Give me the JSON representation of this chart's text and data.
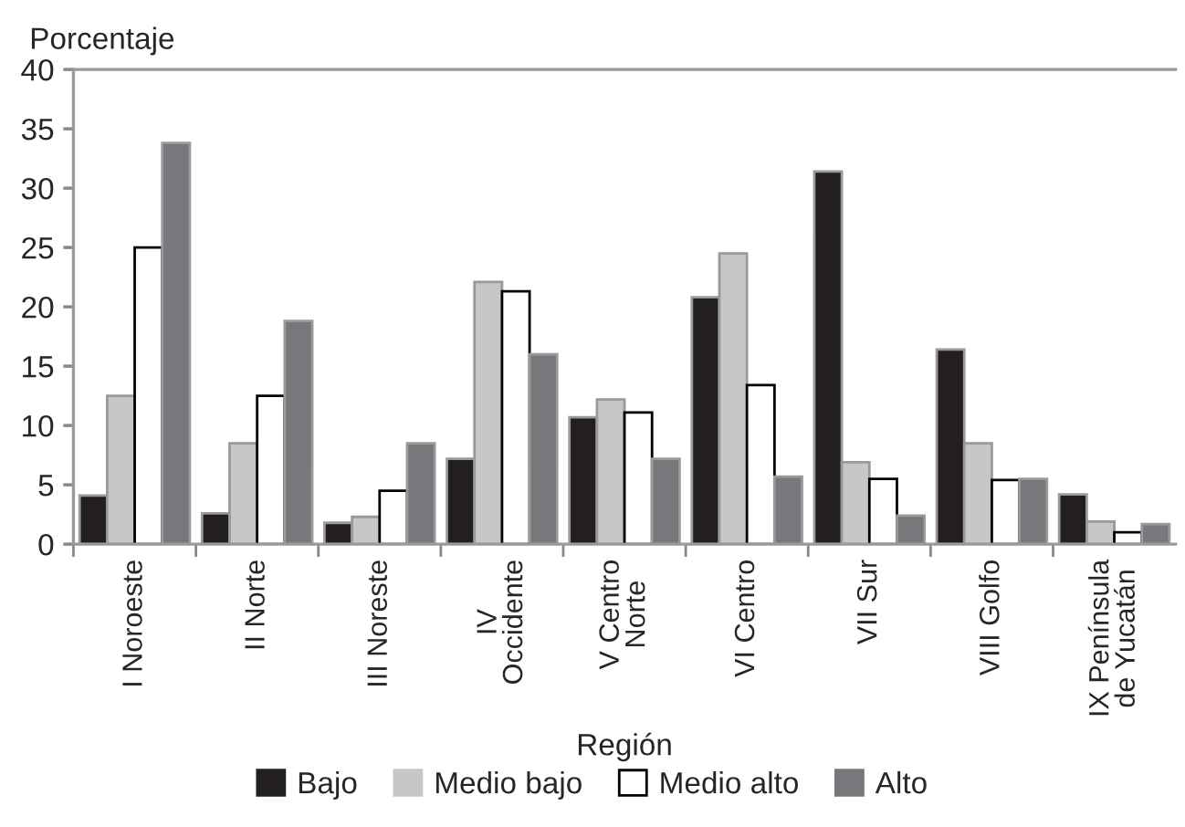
{
  "chart_data": {
    "type": "bar",
    "xlabel": "Región",
    "ylabel": "Porcentaje",
    "categories": [
      "I Noroeste",
      "II Norte",
      "III Noreste",
      "IV\nOccidente",
      "V Centro\nNorte",
      "VI Centro",
      "VII Sur",
      "VIII Golfo",
      "IX Península\nde Yucatán"
    ],
    "series": [
      {
        "name": "Bajo",
        "color": "#231f20",
        "values": [
          4.1,
          2.6,
          1.8,
          7.2,
          10.7,
          20.8,
          31.4,
          16.4,
          4.2
        ]
      },
      {
        "name": "Medio bajo",
        "color": "#c6c7c9",
        "values": [
          12.5,
          8.5,
          2.3,
          22.1,
          12.2,
          24.5,
          6.9,
          8.5,
          1.9
        ]
      },
      {
        "name": "Medio alto",
        "color": "#ffffff",
        "values": [
          25.0,
          12.5,
          4.5,
          21.3,
          11.1,
          13.4,
          5.5,
          5.4,
          1.0
        ]
      },
      {
        "name": "Alto",
        "color": "#77787b",
        "values": [
          33.8,
          18.8,
          8.5,
          16.0,
          7.2,
          5.7,
          2.4,
          5.5,
          1.7
        ]
      }
    ],
    "ylim": [
      0,
      40
    ],
    "yticks": [
      0,
      5,
      10,
      15,
      20,
      25,
      30,
      35,
      40
    ],
    "grid": false,
    "legend": "bottom"
  }
}
